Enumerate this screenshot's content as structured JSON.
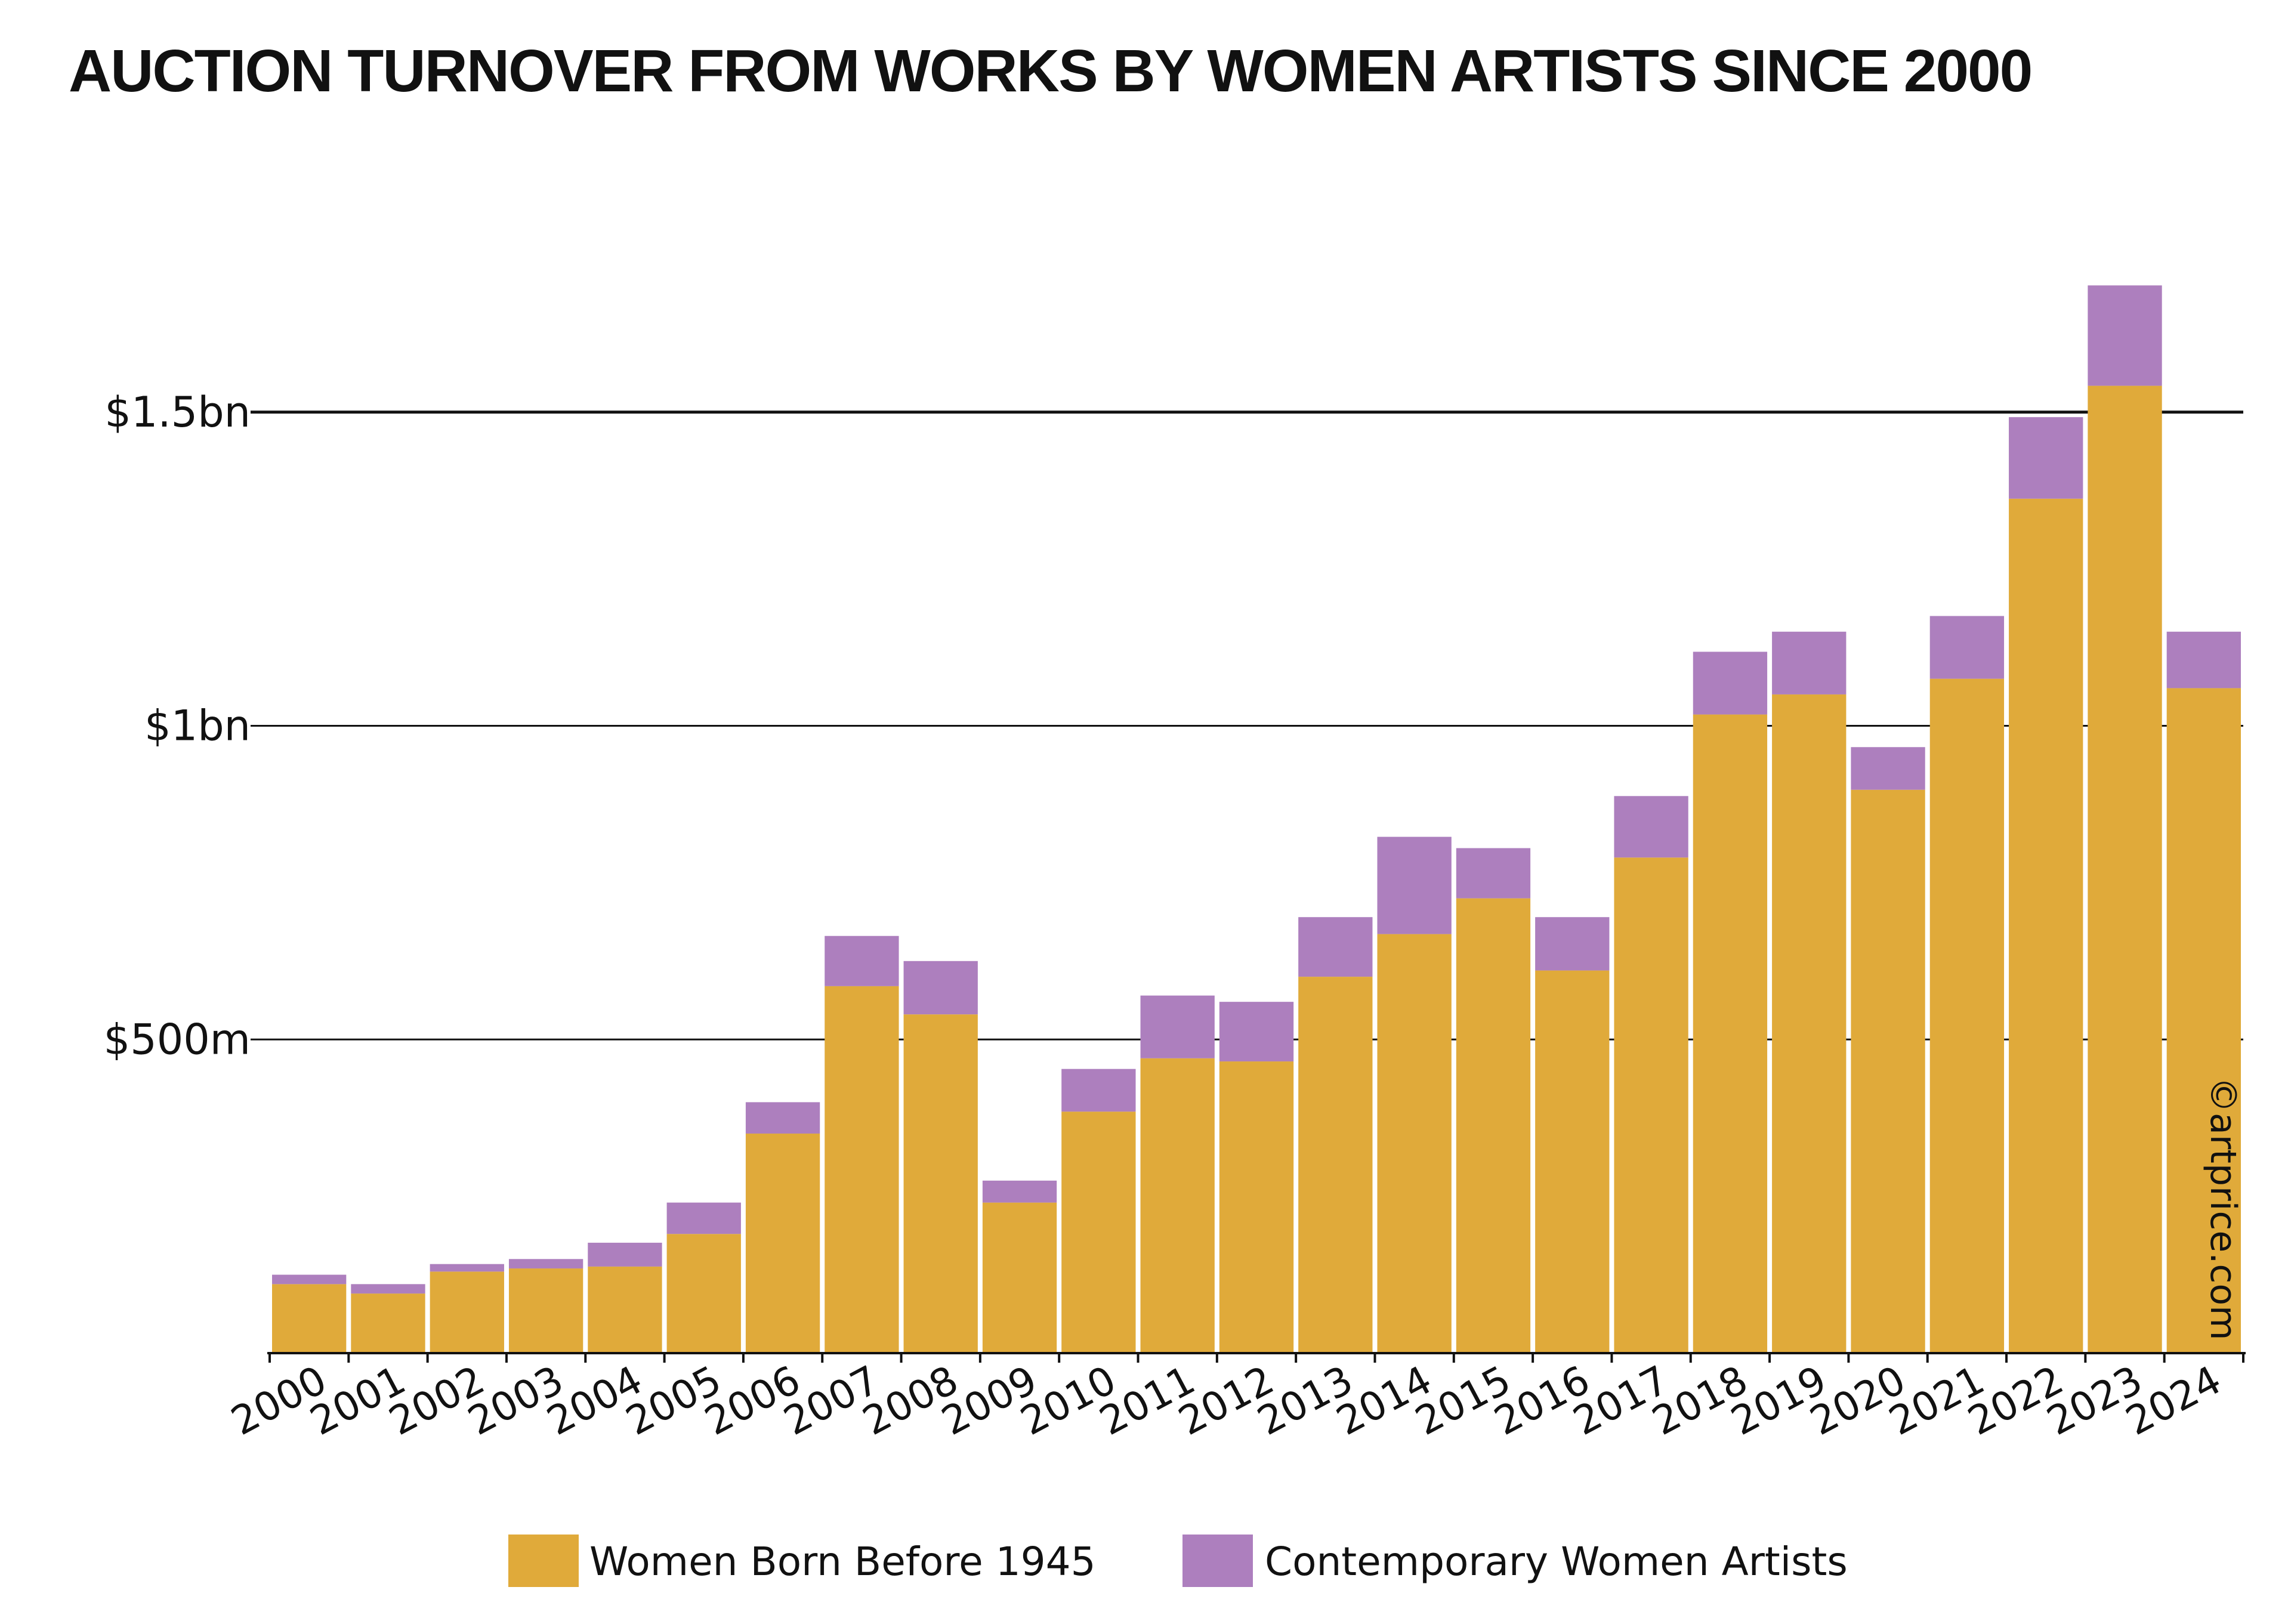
{
  "chart_data": {
    "type": "bar",
    "stacked": true,
    "title": "AUCTION TURNOVER FROM WORKS BY WOMEN ARTISTS SINCE 2000",
    "categories": [
      "2000",
      "2001",
      "2002",
      "2003",
      "2004",
      "2005",
      "2006",
      "2007",
      "2008",
      "2009",
      "2010",
      "2011",
      "2012",
      "2013",
      "2014",
      "2015",
      "2016",
      "2017",
      "2018",
      "2019",
      "2020",
      "2021",
      "2022",
      "2023",
      "2024"
    ],
    "series": [
      {
        "name": "Women Born Before 1945",
        "color": "#e0aa3a",
        "values": [
          110,
          95,
          130,
          135,
          138,
          190,
          350,
          585,
          540,
          240,
          385,
          470,
          465,
          600,
          668,
          725,
          610,
          790,
          1018,
          1050,
          898,
          1075,
          1362,
          1542,
          1060
        ]
      },
      {
        "name": "Contemporary Women Artists",
        "color": "#ad7fbe",
        "values": [
          15,
          15,
          12,
          15,
          38,
          50,
          50,
          80,
          85,
          35,
          68,
          100,
          95,
          95,
          155,
          80,
          85,
          98,
          100,
          100,
          68,
          100,
          130,
          160,
          90
        ]
      }
    ],
    "y_ticks": [
      {
        "value": 500,
        "label": "$500m"
      },
      {
        "value": 1000,
        "label": "$1bn"
      },
      {
        "value": 1500,
        "label": "$1.5bn"
      }
    ],
    "ylim": [
      0,
      1800
    ],
    "grid": true,
    "legend_position": "bottom",
    "credit": "©artprice.com"
  }
}
